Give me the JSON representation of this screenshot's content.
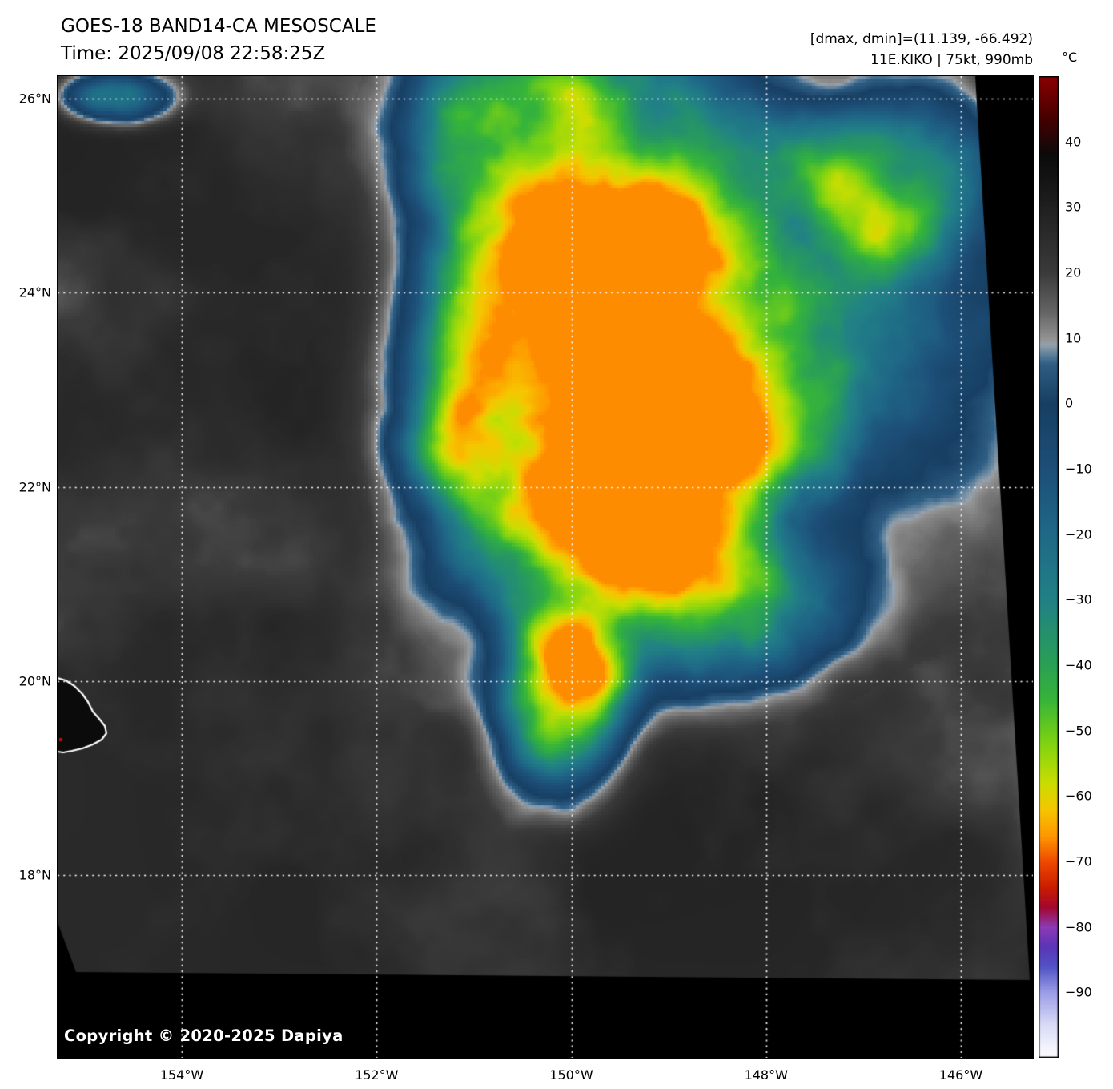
{
  "header": {
    "title": "GOES-18 BAND14-CA MESOSCALE",
    "time": "Time: 2025/09/08 22:58:25Z"
  },
  "annotations": {
    "range": "[dmax, dmin]=(11.139, -66.492)",
    "storm": "11E.KIKO | 75kt, 990mb"
  },
  "colorbar": {
    "unit": "°C",
    "vmax": 50,
    "vmin": -100,
    "ticks": [
      40,
      30,
      20,
      10,
      0,
      -10,
      -20,
      -30,
      -40,
      -50,
      -60,
      -70,
      -80,
      -90
    ],
    "palette": [
      {
        "t": 50,
        "c": "#8b0000"
      },
      {
        "t": 44,
        "c": "#4a0000"
      },
      {
        "t": 38,
        "c": "#0b0b0b"
      },
      {
        "t": 30,
        "c": "#202020"
      },
      {
        "t": 20,
        "c": "#3b3b3b"
      },
      {
        "t": 14,
        "c": "#656565"
      },
      {
        "t": 10,
        "c": "#929292"
      },
      {
        "t": 9,
        "c": "#95a1ad"
      },
      {
        "t": 7.5,
        "c": "#5e809c"
      },
      {
        "t": 6,
        "c": "#2f5e84"
      },
      {
        "t": 0,
        "c": "#173f63"
      },
      {
        "t": -10,
        "c": "#1d4f78"
      },
      {
        "t": -20,
        "c": "#1f6987"
      },
      {
        "t": -30,
        "c": "#218186"
      },
      {
        "t": -38,
        "c": "#279a5e"
      },
      {
        "t": -45,
        "c": "#35b43a"
      },
      {
        "t": -52,
        "c": "#80d411"
      },
      {
        "t": -58,
        "c": "#cade02"
      },
      {
        "t": -62,
        "c": "#f6c600"
      },
      {
        "t": -66,
        "c": "#ff9800"
      },
      {
        "t": -70,
        "c": "#ef4a00"
      },
      {
        "t": -74,
        "c": "#c91c00"
      },
      {
        "t": -77,
        "c": "#a30830"
      },
      {
        "t": -80,
        "c": "#8d3ab5"
      },
      {
        "t": -83,
        "c": "#5b35b8"
      },
      {
        "t": -86,
        "c": "#5153c5"
      },
      {
        "t": -90,
        "c": "#9b9de8"
      },
      {
        "t": -95,
        "c": "#dadcf7"
      },
      {
        "t": -100,
        "c": "#ffffff"
      }
    ]
  },
  "axes": {
    "lat_ticks": [
      {
        "label": "26°N",
        "deg": 26
      },
      {
        "label": "24°N",
        "deg": 24
      },
      {
        "label": "22°N",
        "deg": 22
      },
      {
        "label": "20°N",
        "deg": 20
      },
      {
        "label": "18°N",
        "deg": 18
      }
    ],
    "lon_ticks": [
      {
        "label": "154°W",
        "deg": 154
      },
      {
        "label": "152°W",
        "deg": 152
      },
      {
        "label": "150°W",
        "deg": 150
      },
      {
        "label": "148°W",
        "deg": 148
      },
      {
        "label": "146°W",
        "deg": 146
      }
    ]
  },
  "copyright": "Copyright © 2020-2025 Dapiya",
  "chart_data": {
    "type": "heatmap",
    "satellite": "GOES-18",
    "band": "BAND14-CA",
    "sector": "MESOSCALE",
    "time_utc": "2025/09/08 22:58:25Z",
    "storm": {
      "designation": "11E",
      "name": "KIKO",
      "max_wind_kt": 75,
      "min_pressure_mb": 990
    },
    "scene_extrema_c": {
      "dmax": 11.139,
      "dmin": -66.492
    },
    "colorbar": {
      "unit": "°C",
      "range": [
        -100,
        50
      ],
      "tick_step": 10
    },
    "grid": {
      "lat_deg_n": [
        26,
        24,
        22,
        20,
        18
      ],
      "lon_deg_w": [
        154,
        152,
        150,
        148,
        146
      ]
    },
    "features": {
      "coastline": "Hawaii Big Island northeast coast visible at left edge near 20°N",
      "storm_appearance": "cold convective canopy (−50 to −66 °C, green/yellow/orange) centered near 22.5°N 150°W over warm gray low clouds"
    }
  }
}
